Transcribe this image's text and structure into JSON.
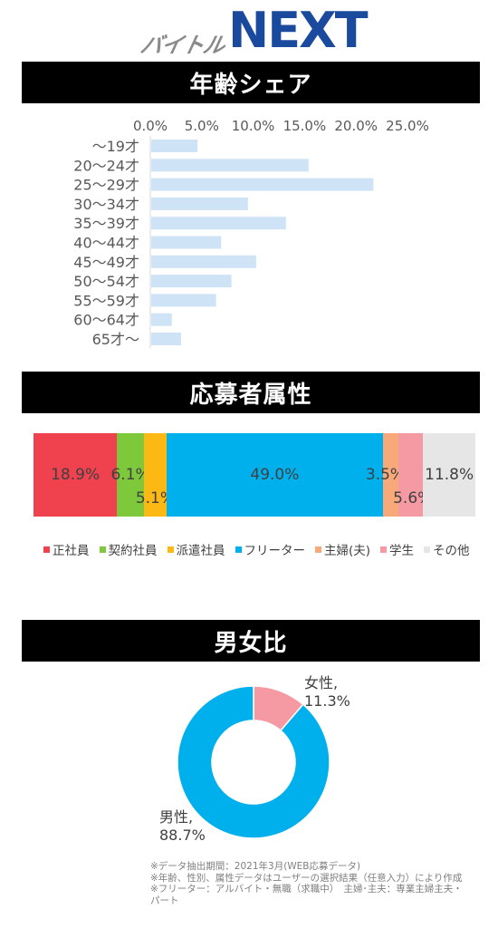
{
  "logo": {
    "part1": "バイトル",
    "part2": "NEXT"
  },
  "sections": {
    "age_title": "年齢シェア",
    "attr_title": "応募者属性",
    "gender_title": "男女比"
  },
  "chart_data": [
    {
      "type": "bar",
      "orientation": "horizontal",
      "title": "年齢シェア",
      "categories": [
        "〜19才",
        "20〜24才",
        "25〜29才",
        "30〜34才",
        "35〜39才",
        "40〜44才",
        "45〜49才",
        "50〜54才",
        "55〜59才",
        "60〜64才",
        "65才〜"
      ],
      "values": [
        4.5,
        15.3,
        21.6,
        9.4,
        13.1,
        6.8,
        10.2,
        7.8,
        6.3,
        2.0,
        2.9
      ],
      "xlim": [
        0,
        25
      ],
      "x_ticks": [
        "0.0%",
        "5.0%",
        "10.0%",
        "15.0%",
        "20.0%",
        "25.0%"
      ],
      "x_axis_position": "top",
      "bar_color": "#cfe3f6",
      "grid": false
    },
    {
      "type": "bar",
      "stacked": true,
      "title": "応募者属性",
      "series": [
        {
          "name": "正社員",
          "value": 18.9,
          "label": "18.9%",
          "color": "#f0414f"
        },
        {
          "name": "契約社員",
          "value": 6.1,
          "label": "6.1%",
          "color": "#7ec93b"
        },
        {
          "name": "派遣社員",
          "value": 5.1,
          "label": "5.1%",
          "color": "#fcb813"
        },
        {
          "name": "フリーター",
          "value": 49.0,
          "label": "49.0%",
          "color": "#00b0ec"
        },
        {
          "name": "主婦(夫)",
          "value": 3.5,
          "label": "3.5%",
          "color": "#f7a97a"
        },
        {
          "name": "学生",
          "value": 5.6,
          "label": "5.6%",
          "color": "#f59aa3"
        },
        {
          "name": "その他",
          "value": 11.8,
          "label": "11.8%",
          "color": "#e6e6e6"
        }
      ],
      "legend": "bottom"
    },
    {
      "type": "pie",
      "donut": true,
      "title": "男女比",
      "slices": [
        {
          "name": "女性",
          "value": 11.3,
          "label_name": "女性,",
          "label_value": "11.3%",
          "color": "#f59aa3"
        },
        {
          "name": "男性",
          "value": 88.7,
          "label_name": "男性,",
          "label_value": "88.7%",
          "color": "#00b0ec"
        }
      ]
    }
  ],
  "notes": [
    "※データ抽出期間：2021年3月(WEB応募データ)",
    "※年齢、性別、属性データはユーザーの選択結果（任意入力）により作成",
    "※フリーター：アルバイト・無職（求職中）　主婦･主夫：専業主婦主夫・パート"
  ]
}
